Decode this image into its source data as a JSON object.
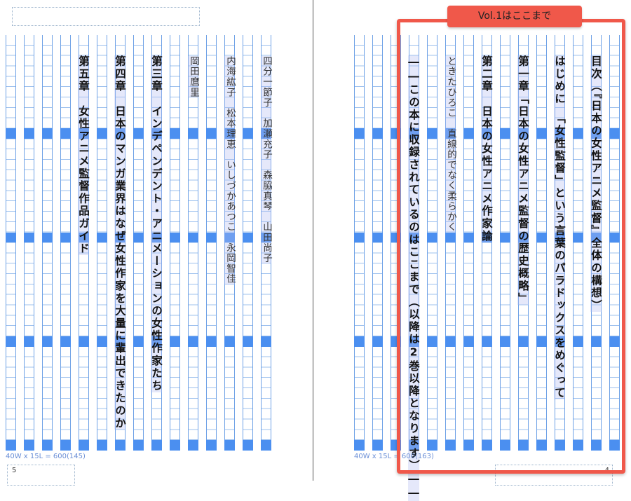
{
  "grid": {
    "chars_per_line": 40,
    "lines": 15,
    "highlight_every_rows": 10,
    "line_color": "#6ea1e6",
    "band_color": "#4b8ff0"
  },
  "left_page": {
    "page_number": "5",
    "caption": "40W x 15L = 600(145)",
    "lines": [
      {
        "column": 0,
        "style": "name",
        "text": "四分一節子　加瀬充子　森脇真琴　山田尚子"
      },
      {
        "column": 2,
        "style": "name",
        "text": "内海紘子　松本理恵　いしづかあつこ　永岡智佳"
      },
      {
        "column": 4,
        "style": "name",
        "text": "岡田麿里"
      },
      {
        "column": 6,
        "style": "title",
        "text": "第三章　インデペンデント・アニメーションの女性作家たち"
      },
      {
        "column": 8,
        "style": "title",
        "text": "第四章　日本のマンガ業界はなぜ女性作家を大量に輩出できたのか"
      },
      {
        "column": 10,
        "style": "title",
        "text": "第五章　女性アニメ監督作品ガイド"
      }
    ]
  },
  "right_page": {
    "page_number": "4",
    "caption": "40W x 15L = 600(163)",
    "lines": [
      {
        "column": 1,
        "style": "title",
        "text": "目次（『日本の女性アニメ監督』全体の構想）"
      },
      {
        "column": 3,
        "style": "title",
        "text": "はじめに　「女性監督」という言葉のパラドックスをめぐって"
      },
      {
        "column": 5,
        "style": "title",
        "text": "第一章「日本の女性アニメ監督の歴史概略」"
      },
      {
        "column": 7,
        "style": "title",
        "text": "第二章　日本の女性アニメ作家論"
      },
      {
        "column": 9,
        "style": "name",
        "text": "ときたひろこ　直線的でなく柔らかく"
      },
      {
        "column": 11,
        "style": "title",
        "text": "――この本に収録されているのはここまで（以降は2巻以降となります）――"
      }
    ]
  },
  "annotation": {
    "label": "Vol.1はここまで",
    "color": "#f0584a"
  }
}
